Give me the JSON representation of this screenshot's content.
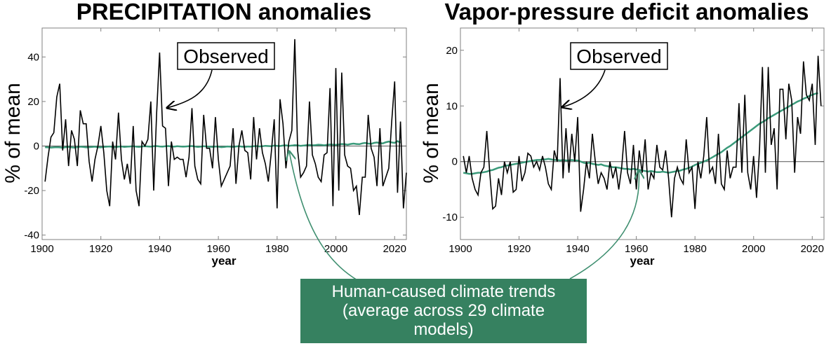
{
  "annotation_observed": "Observed",
  "model_box": {
    "lines": [
      "Human-caused climate trends",
      "(average across 29 climate",
      "models)"
    ],
    "fill_color": "#368160",
    "arrow_color": "#3f8f70"
  },
  "colors": {
    "observed": "#000000",
    "model": "#3a9a7a",
    "zero_line": "#555555",
    "frame": "#808080"
  },
  "chart_data": [
    {
      "type": "line",
      "title": "PRECIPITATION anomalies",
      "xlabel": "year",
      "ylabel": "% of mean",
      "xlim": [
        1900,
        2024
      ],
      "ylim": [
        -42,
        53
      ],
      "xticks": [
        1900,
        1920,
        1940,
        1960,
        1980,
        2000,
        2020
      ],
      "yticks": [
        -40,
        -20,
        0,
        20,
        40
      ],
      "series": [
        {
          "name": "Observed",
          "x_start": 1901,
          "values": [
            -16,
            -5,
            4,
            6,
            22,
            28,
            -2,
            12,
            -9,
            7,
            3,
            -9,
            16,
            10,
            10,
            -7,
            -16,
            -6,
            0,
            9,
            -3,
            -20,
            -27,
            2,
            -6,
            15,
            -6,
            -15,
            -8,
            -17,
            9,
            -20,
            -27,
            2,
            0,
            3,
            20,
            -20,
            15,
            42,
            9,
            8,
            -18,
            2,
            -6,
            -5,
            -6,
            -6,
            -14,
            -5,
            17,
            -9,
            -15,
            -17,
            14,
            -1,
            -1,
            -10,
            13,
            -6,
            -18,
            -15,
            -12,
            -9,
            8,
            -17,
            0,
            7,
            -2,
            -3,
            -15,
            13,
            -6,
            8,
            -3,
            -8,
            -16,
            -3,
            12,
            -28,
            21,
            10,
            -10,
            2,
            7,
            48,
            -2,
            -14,
            -12,
            -9,
            20,
            -4,
            -8,
            -14,
            -16,
            -4,
            -3,
            26,
            -27,
            35,
            -20,
            33,
            -4,
            -9,
            -10,
            -20,
            -18,
            -31,
            -14,
            -14,
            14,
            -1,
            -5,
            -18,
            8,
            -18,
            -14,
            -10,
            11,
            29,
            -21,
            11,
            -28,
            -12
          ]
        },
        {
          "name": "Model mean",
          "x_start": 1901,
          "values": [
            -0.5,
            -0.6,
            -0.7,
            -0.6,
            -0.5,
            -0.6,
            -0.8,
            -0.5,
            -0.4,
            -0.6,
            -0.7,
            -0.5,
            -0.3,
            -0.4,
            -0.6,
            -0.5,
            -0.4,
            -0.3,
            -0.5,
            -0.6,
            -0.4,
            -0.3,
            -0.2,
            -0.4,
            -0.5,
            -0.3,
            -0.2,
            -0.4,
            -0.3,
            -0.2,
            -0.1,
            -0.3,
            -0.4,
            -0.2,
            -0.1,
            -0.2,
            -0.3,
            -0.1,
            0,
            -0.2,
            -0.3,
            -0.1,
            0,
            -0.2,
            -0.3,
            -0.1,
            -0.2,
            -0.3,
            -0.2,
            -0.1,
            0,
            -0.2,
            -0.4,
            -0.3,
            -0.1,
            -0.2,
            -0.3,
            -0.4,
            -0.2,
            -0.3,
            -0.5,
            -0.4,
            -0.2,
            -0.3,
            -0.4,
            -0.2,
            -0.1,
            -0.3,
            -0.4,
            -0.2,
            -0.3,
            -0.1,
            0,
            -0.2,
            -0.1,
            0.1,
            0,
            -0.1,
            0.2,
            0.1,
            0,
            0.2,
            0.3,
            0.1,
            0.2,
            0.4,
            0.3,
            0.1,
            0.2,
            0.4,
            0.5,
            0.3,
            0.4,
            0.6,
            0.5,
            0.3,
            0.5,
            0.7,
            0.6,
            0.5,
            0.7,
            0.9,
            0.8,
            0.6,
            0.9,
            1.1,
            0.9,
            0.8,
            1.2,
            1.4,
            1.1,
            1,
            1.4,
            1.6,
            1.3,
            1.2,
            1.7,
            2,
            1.6,
            1.4,
            2.2,
            1.5
          ]
        }
      ]
    },
    {
      "type": "line",
      "title": "Vapor-pressure deficit anomalies",
      "xlabel": "year",
      "ylabel": "% of mean",
      "xlim": [
        1900,
        2024
      ],
      "ylim": [
        -14,
        24
      ],
      "xticks": [
        1900,
        1920,
        1940,
        1960,
        1980,
        2000,
        2020
      ],
      "yticks": [
        -10,
        0,
        10,
        20
      ],
      "series": [
        {
          "name": "Observed",
          "x_start": 1901,
          "values": [
            1,
            -2,
            1,
            -3,
            -5,
            -6,
            -2,
            -1,
            5.5,
            -2,
            -8.5,
            -8,
            -3,
            -6,
            0,
            -2,
            0,
            -5.5,
            -5,
            1,
            -3.5,
            -2,
            1.5,
            1,
            -1,
            0,
            -1.5,
            1,
            -1,
            -4,
            -5,
            2,
            0,
            15,
            -3,
            6,
            -2,
            5,
            0,
            8,
            -9,
            -5,
            0,
            -3,
            5,
            0,
            -4,
            -2,
            -3,
            -5,
            0,
            -3,
            -1,
            -5,
            -1,
            5.5,
            -2,
            -4,
            3,
            -5,
            2,
            -2,
            4,
            -5,
            -2,
            -3,
            3,
            -1,
            -1.5,
            2,
            -3,
            -10,
            -3,
            -1,
            -3,
            -4,
            4,
            -2,
            -1,
            -8.5,
            0,
            -3,
            1,
            8,
            -2,
            -1,
            -4,
            5,
            -4,
            -5,
            2,
            -3,
            -1,
            -1,
            10.5,
            -2,
            12,
            -2,
            -5,
            1,
            -6.5,
            2,
            17,
            -2,
            17,
            3,
            6,
            -5,
            13,
            13,
            4,
            14,
            11,
            -2,
            8,
            5,
            18,
            12,
            11,
            14,
            3,
            19,
            10
          ]
        },
        {
          "name": "Model mean",
          "x_start": 1901,
          "values": [
            -2,
            -2.1,
            -2.2,
            -2.2,
            -2.1,
            -2,
            -2,
            -1.9,
            -1.8,
            -1.6,
            -1.5,
            -1.3,
            -1.1,
            -1,
            -0.8,
            -0.7,
            -0.6,
            -0.5,
            -0.4,
            -0.3,
            -0.2,
            -0.1,
            0,
            0.1,
            0.2,
            0.3,
            0.3,
            0.4,
            0.4,
            0.5,
            0.4,
            0.3,
            0.3,
            0.2,
            0.3,
            0.2,
            0.2,
            0.3,
            0.2,
            0.2,
            0,
            -0.2,
            -0.3,
            -0.2,
            -0.4,
            -0.5,
            -0.6,
            -0.5,
            -0.7,
            -0.8,
            -0.9,
            -1,
            -1,
            -1.1,
            -1.2,
            -1.3,
            -1.3,
            -1.4,
            -1.3,
            -1.4,
            -1.5,
            -1.6,
            -1.7,
            -1.8,
            -1.7,
            -1.8,
            -1.9,
            -1.9,
            -1.8,
            -1.9,
            -2,
            -1.9,
            -1.8,
            -1.7,
            -1.6,
            -1.4,
            -1.3,
            -1.1,
            -0.9,
            -0.6,
            -0.4,
            -0.2,
            0,
            0.2,
            0.5,
            0.8,
            1.1,
            1.4,
            1.7,
            2.1,
            2.5,
            2.8,
            3.2,
            3.6,
            4,
            4.4,
            4.8,
            5.2,
            5.6,
            6,
            6.4,
            6.8,
            7.1,
            7.4,
            7.8,
            8.1,
            8.4,
            8.7,
            9,
            9.3,
            9.6,
            9.9,
            10.2,
            10.5,
            10.8,
            11,
            11.3,
            11.5,
            11.8,
            12,
            12.2,
            12.3
          ]
        }
      ]
    }
  ]
}
